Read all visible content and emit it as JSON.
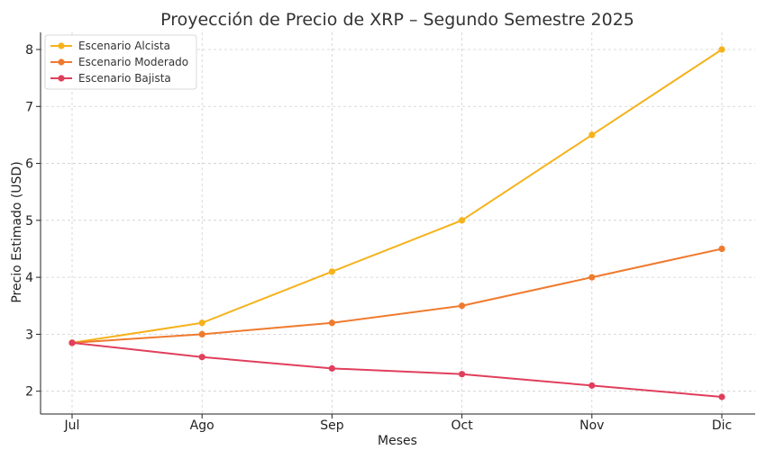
{
  "chart_data": {
    "type": "line",
    "title": "Proyección de Precio de XRP – Segundo Semestre 2025",
    "xlabel": "Meses",
    "ylabel": "Precio Estimado (USD)",
    "categories": [
      "Jul",
      "Ago",
      "Sep",
      "Oct",
      "Nov",
      "Dic"
    ],
    "ylim": [
      1.6,
      8.3
    ],
    "yticks": [
      2,
      3,
      4,
      5,
      6,
      7,
      8
    ],
    "grid": true,
    "legend_position": "top-left",
    "series": [
      {
        "name": "Escenario Alcista",
        "color": "#f5b21b",
        "values": [
          2.85,
          3.2,
          4.1,
          5.0,
          6.5,
          8.0
        ]
      },
      {
        "name": "Escenario Moderado",
        "color": "#ef7a2e",
        "values": [
          2.85,
          3.0,
          3.2,
          3.5,
          4.0,
          4.5
        ]
      },
      {
        "name": "Escenario Bajista",
        "color": "#e03f5c",
        "values": [
          2.85,
          2.6,
          2.4,
          2.3,
          2.1,
          1.9
        ]
      }
    ]
  }
}
